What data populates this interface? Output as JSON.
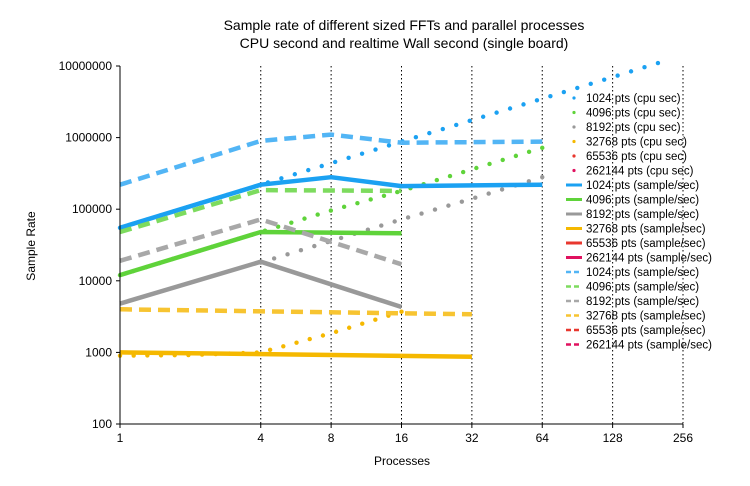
{
  "chart_data": {
    "type": "line",
    "title_lines": [
      "Sample rate of different sized FFTs and parallel processes",
      "CPU second and realtime Wall second (single board)"
    ],
    "xlabel": "Processes",
    "ylabel": "Sample Rate",
    "x_scale": "log2",
    "y_scale": "log10",
    "xlim": [
      1,
      256
    ],
    "ylim": [
      100,
      10000000
    ],
    "x_ticks": [
      1,
      4,
      8,
      16,
      32,
      64,
      128,
      256
    ],
    "x_tick_labels": [
      "1",
      "4",
      "8",
      "16",
      "32",
      "64",
      "128",
      "256"
    ],
    "y_ticks": [
      100,
      1000,
      10000,
      100000,
      1000000,
      10000000
    ],
    "y_tick_labels": [
      "100",
      "1000",
      "10000",
      "100000",
      "1000000",
      "10000000"
    ],
    "grid": "vertical dotted",
    "legend_position": "right",
    "series": [
      {
        "name": "1024 pts (cpu sec)",
        "color": "#1ba1f2",
        "style": "dots",
        "x": [
          1,
          2,
          4,
          8,
          16,
          32,
          64,
          128,
          200
        ],
        "y": [
          55000,
          110000,
          220000,
          440000,
          880000,
          1750000,
          3500000,
          7000000,
          11000000
        ]
      },
      {
        "name": "4096 pts (cpu sec)",
        "color": "#5fd33a",
        "style": "dots",
        "x": [
          1,
          2,
          4,
          8,
          16,
          32,
          64
        ],
        "y": [
          12000,
          24000,
          48000,
          96000,
          180000,
          360000,
          720000
        ]
      },
      {
        "name": "8192 pts (cpu sec)",
        "color": "#999999",
        "style": "dots",
        "x": [
          4,
          8,
          16,
          32,
          64
        ],
        "y": [
          18000,
          36000,
          72000,
          140000,
          280000
        ]
      },
      {
        "name": "32768 pts (cpu sec)",
        "color": "#f5b800",
        "style": "dots",
        "x": [
          1,
          2,
          4,
          8,
          16
        ],
        "y": [
          900,
          920,
          1000,
          1850,
          3700
        ]
      },
      {
        "name": "65536 pts (cpu sec)",
        "color": "#e8372e",
        "style": "dots",
        "x": [],
        "y": []
      },
      {
        "name": "262144 pts (cpu sec)",
        "color": "#e0115f",
        "style": "dots",
        "x": [],
        "y": []
      },
      {
        "name": "1024 pts (sample/sec)",
        "color": "#1ba1f2",
        "style": "solid",
        "x": [
          1,
          4,
          8,
          16,
          64
        ],
        "y": [
          55000,
          220000,
          280000,
          210000,
          220000
        ]
      },
      {
        "name": "4096 pts (sample/sec)",
        "color": "#5fd33a",
        "style": "solid",
        "x": [
          1,
          4,
          16
        ],
        "y": [
          12000,
          48000,
          46000
        ]
      },
      {
        "name": "8192 pts (sample/sec)",
        "color": "#999999",
        "style": "solid",
        "x": [
          1,
          4,
          16
        ],
        "y": [
          4800,
          18500,
          4300
        ]
      },
      {
        "name": "32768 pts (sample/sec)",
        "color": "#f5b800",
        "style": "solid",
        "x": [
          1,
          32
        ],
        "y": [
          1000,
          870
        ]
      },
      {
        "name": "65536 pts (sample/sec)",
        "color": "#e8372e",
        "style": "solid",
        "x": [],
        "y": []
      },
      {
        "name": "262144 pts (sample/sec)",
        "color": "#e0115f",
        "style": "solid",
        "x": [],
        "y": []
      },
      {
        "name": "1024 pts (sample/sec)",
        "color": "#52b5f5",
        "style": "dashed",
        "x": [
          1,
          4,
          8,
          16,
          64
        ],
        "y": [
          220000,
          900000,
          1100000,
          850000,
          880000
        ]
      },
      {
        "name": "4096 pts (sample/sec)",
        "color": "#7ddb5e",
        "style": "dashed",
        "x": [
          1,
          4,
          16
        ],
        "y": [
          48000,
          185000,
          180000
        ]
      },
      {
        "name": "8192 pts (sample/sec)",
        "color": "#a8a8a8",
        "style": "dashed",
        "x": [
          1,
          4,
          16
        ],
        "y": [
          19000,
          72000,
          17000
        ]
      },
      {
        "name": "32768 pts (sample/sec)",
        "color": "#f7c431",
        "style": "dashed",
        "x": [
          1,
          32
        ],
        "y": [
          4000,
          3400
        ]
      },
      {
        "name": "65536 pts (sample/sec)",
        "color": "#e8372e",
        "style": "dashed",
        "x": [],
        "y": []
      },
      {
        "name": "262144 pts (sample/sec)",
        "color": "#e0115f",
        "style": "dashed",
        "x": [],
        "y": []
      }
    ]
  }
}
